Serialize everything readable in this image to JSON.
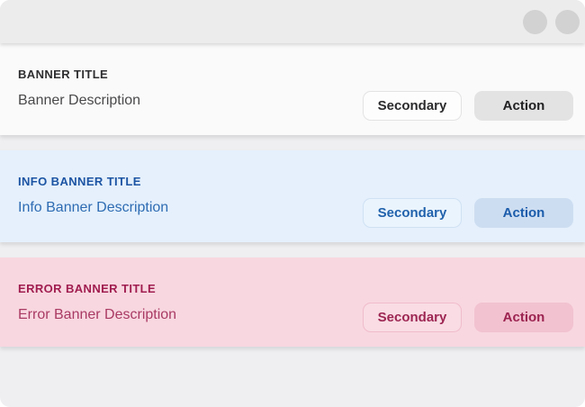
{
  "window": {
    "controls": [
      {
        "name": "window-control-1"
      },
      {
        "name": "window-control-2"
      }
    ]
  },
  "banners": [
    {
      "variant": "default",
      "title": "BANNER TITLE",
      "description": "Banner Description",
      "secondary_label": "Secondary",
      "action_label": "Action"
    },
    {
      "variant": "info",
      "title": "INFO BANNER TITLE",
      "description": "Info Banner Description",
      "secondary_label": "Secondary",
      "action_label": "Action"
    },
    {
      "variant": "error",
      "title": "ERROR BANNER TITLE",
      "description": "Error Banner Description",
      "secondary_label": "Secondary",
      "action_label": "Action"
    }
  ],
  "colors": {
    "titlebar_bg": "#ececec",
    "window_control": "#d2d2d2",
    "page_bg": "#efeff1",
    "default_bg": "#fafafa",
    "default_text": "#2e2e30",
    "default_action_bg": "#e3e3e4",
    "info_bg": "#e5f0fc",
    "info_text": "#1c54a3",
    "info_action_bg": "#cdddf1",
    "error_bg": "#f8d7e0",
    "error_text": "#a01d4f",
    "error_action_bg": "#f2c2d0"
  }
}
